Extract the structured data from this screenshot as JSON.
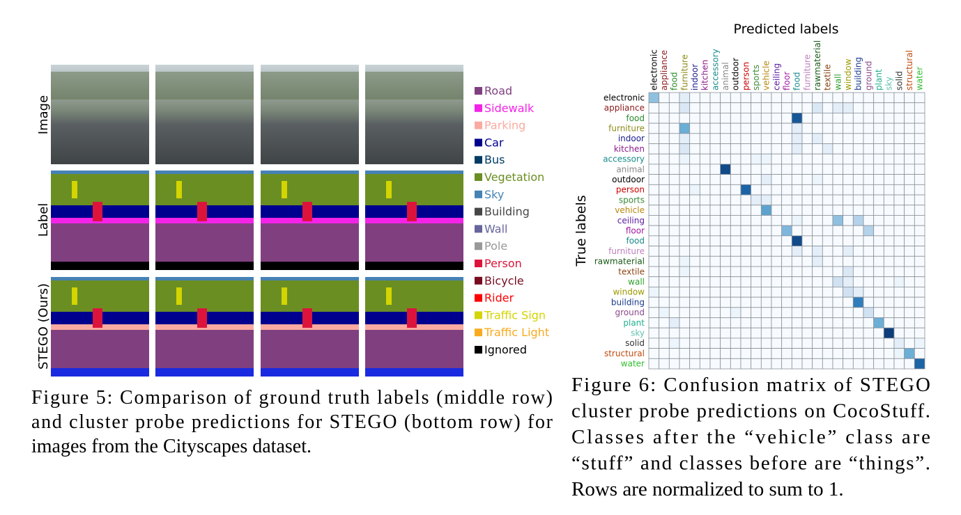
{
  "figure5": {
    "row_labels": [
      "Image",
      "Label",
      "STEGO (Ours)"
    ],
    "legend": [
      {
        "name": "Road",
        "color": "#804080"
      },
      {
        "name": "Sidewalk",
        "color": "#f423e8"
      },
      {
        "name": "Parking",
        "color": "#faaaa0"
      },
      {
        "name": "Car",
        "color": "#00008e"
      },
      {
        "name": "Bus",
        "color": "#003c64"
      },
      {
        "name": "Vegetation",
        "color": "#6b8e23"
      },
      {
        "name": "Sky",
        "color": "#4682b4"
      },
      {
        "name": "Building",
        "color": "#464646"
      },
      {
        "name": "Wall",
        "color": "#66669c"
      },
      {
        "name": "Pole",
        "color": "#999999"
      },
      {
        "name": "Person",
        "color": "#dc143c"
      },
      {
        "name": "Bicycle",
        "color": "#770b20"
      },
      {
        "name": "Rider",
        "color": "#ff0000"
      },
      {
        "name": "Traffic Sign",
        "color": "#d4d400"
      },
      {
        "name": "Traffic Light",
        "color": "#faaa1e"
      },
      {
        "name": "Ignored",
        "color": "#000000"
      }
    ],
    "caption": [
      "Figure 5: Comparison of ground truth labels (middle row)",
      "and cluster probe predictions for STEGO (bottom row) for",
      "images from the Cityscapes dataset."
    ]
  },
  "figure6_caption": [
    "Figure 6: Confusion matrix of STEGO",
    "cluster probe predictions on CocoStuff.",
    "Classes after the “vehicle” class are",
    "“stuff” and classes before are “things”.",
    "Rows are normalized to sum to 1."
  ],
  "chart_data": {
    "type": "heatmap",
    "x_label": "Predicted labels",
    "y_label": "True labels",
    "categories": [
      "electronic",
      "appliance",
      "food",
      "furniture",
      "indoor",
      "kitchen",
      "accessory",
      "animal",
      "outdoor",
      "person",
      "sports",
      "vehicle",
      "ceiling",
      "floor",
      "food",
      "furniture",
      "rawmaterial",
      "textile",
      "wall",
      "window",
      "building",
      "ground",
      "plant",
      "sky",
      "solid",
      "structural",
      "water"
    ],
    "label_colors": [
      "#000000",
      "#8b1a1a",
      "#2a8a2a",
      "#8b8b1a",
      "#1a1a8b",
      "#8b1a8b",
      "#1a8b8b",
      "#888888",
      "#000000",
      "#cc0000",
      "#3a8a3a",
      "#b8860b",
      "#5a1aa0",
      "#a01aa0",
      "#1a8a8a",
      "#c080c0",
      "#1a5a1a",
      "#8b4513",
      "#30a030",
      "#9a9a00",
      "#1a3a8b",
      "#8a4a8a",
      "#20b090",
      "#60c0b0",
      "#333333",
      "#c04a10",
      "#30c030"
    ],
    "values": [
      [
        0.4,
        0,
        0,
        0.1,
        0,
        0,
        0,
        0,
        0,
        0,
        0,
        0,
        0,
        0,
        0,
        0,
        0,
        0,
        0,
        0,
        0,
        0,
        0,
        0,
        0,
        0,
        0
      ],
      [
        0,
        0,
        0,
        0.15,
        0,
        0,
        0,
        0,
        0,
        0,
        0,
        0,
        0,
        0,
        0,
        0,
        0.15,
        0,
        0.1,
        0.1,
        0,
        0,
        0,
        0,
        0,
        0,
        0
      ],
      [
        0,
        0,
        0,
        0,
        0,
        0,
        0,
        0,
        0,
        0,
        0,
        0,
        0,
        0,
        0.85,
        0,
        0,
        0,
        0,
        0,
        0,
        0,
        0,
        0,
        0,
        0,
        0
      ],
      [
        0,
        0,
        0,
        0.5,
        0,
        0,
        0,
        0,
        0,
        0,
        0,
        0,
        0,
        0,
        0.1,
        0,
        0,
        0,
        0,
        0,
        0,
        0,
        0,
        0,
        0,
        0,
        0
      ],
      [
        0,
        0,
        0,
        0.1,
        0,
        0,
        0,
        0,
        0,
        0,
        0,
        0,
        0,
        0,
        0.1,
        0,
        0.1,
        0,
        0,
        0,
        0,
        0,
        0,
        0,
        0,
        0,
        0
      ],
      [
        0,
        0,
        0,
        0.15,
        0,
        0,
        0,
        0,
        0,
        0,
        0,
        0,
        0,
        0,
        0.1,
        0,
        0,
        0.1,
        0,
        0,
        0,
        0,
        0,
        0,
        0,
        0,
        0
      ],
      [
        0,
        0,
        0,
        0.05,
        0,
        0,
        0,
        0,
        0,
        0,
        0.05,
        0.05,
        0,
        0,
        0,
        0,
        0,
        0,
        0,
        0,
        0,
        0,
        0,
        0,
        0,
        0,
        0
      ],
      [
        0,
        0,
        0,
        0,
        0,
        0,
        0,
        0.9,
        0,
        0,
        0,
        0,
        0,
        0,
        0,
        0,
        0,
        0,
        0,
        0,
        0,
        0,
        0,
        0,
        0,
        0,
        0
      ],
      [
        0,
        0,
        0,
        0,
        0,
        0,
        0,
        0,
        0,
        0,
        0,
        0.1,
        0,
        0,
        0,
        0,
        0.05,
        0,
        0,
        0,
        0,
        0,
        0,
        0,
        0,
        0,
        0
      ],
      [
        0,
        0,
        0,
        0,
        0.05,
        0,
        0,
        0,
        0,
        0.8,
        0,
        0,
        0,
        0,
        0,
        0,
        0,
        0,
        0,
        0,
        0,
        0,
        0,
        0,
        0,
        0,
        0
      ],
      [
        0,
        0,
        0,
        0,
        0,
        0,
        0,
        0,
        0,
        0,
        0.1,
        0.1,
        0,
        0,
        0,
        0,
        0,
        0,
        0,
        0,
        0,
        0,
        0,
        0,
        0,
        0,
        0
      ],
      [
        0,
        0,
        0,
        0,
        0,
        0,
        0,
        0,
        0,
        0,
        0,
        0.55,
        0,
        0,
        0,
        0,
        0,
        0,
        0,
        0,
        0,
        0,
        0,
        0,
        0,
        0,
        0
      ],
      [
        0,
        0,
        0,
        0,
        0,
        0,
        0,
        0,
        0,
        0,
        0,
        0,
        0,
        0,
        0.05,
        0,
        0,
        0,
        0.4,
        0,
        0.3,
        0,
        0,
        0,
        0,
        0,
        0
      ],
      [
        0,
        0,
        0,
        0,
        0,
        0,
        0,
        0,
        0,
        0,
        0,
        0,
        0,
        0.45,
        0,
        0,
        0,
        0,
        0,
        0,
        0,
        0.3,
        0,
        0,
        0,
        0,
        0
      ],
      [
        0,
        0,
        0,
        0,
        0,
        0,
        0,
        0,
        0,
        0,
        0,
        0,
        0,
        0,
        0.9,
        0,
        0,
        0,
        0,
        0,
        0,
        0,
        0,
        0,
        0,
        0,
        0
      ],
      [
        0,
        0,
        0,
        0,
        0,
        0,
        0,
        0,
        0,
        0,
        0,
        0,
        0,
        0,
        0.1,
        0,
        0.1,
        0,
        0,
        0.1,
        0,
        0,
        0,
        0,
        0,
        0,
        0
      ],
      [
        0,
        0,
        0,
        0.05,
        0,
        0,
        0,
        0,
        0,
        0,
        0,
        0,
        0,
        0,
        0,
        0,
        0.1,
        0,
        0,
        0,
        0,
        0,
        0,
        0,
        0,
        0,
        0
      ],
      [
        0,
        0,
        0,
        0.05,
        0,
        0,
        0,
        0,
        0,
        0,
        0,
        0,
        0,
        0,
        0,
        0,
        0,
        0,
        0,
        0.15,
        0,
        0,
        0,
        0,
        0,
        0,
        0
      ],
      [
        0,
        0,
        0,
        0,
        0,
        0,
        0,
        0,
        0,
        0,
        0,
        0,
        0,
        0,
        0,
        0,
        0,
        0,
        0.2,
        0.1,
        0,
        0,
        0,
        0,
        0.05,
        0,
        0
      ],
      [
        0.05,
        0,
        0,
        0,
        0,
        0,
        0,
        0,
        0,
        0,
        0,
        0,
        0,
        0,
        0,
        0,
        0,
        0,
        0,
        0.2,
        0.1,
        0,
        0,
        0,
        0,
        0,
        0
      ],
      [
        0,
        0,
        0,
        0,
        0,
        0,
        0,
        0,
        0,
        0,
        0,
        0,
        0,
        0,
        0,
        0,
        0,
        0,
        0,
        0,
        0.7,
        0,
        0,
        0,
        0,
        0,
        0
      ],
      [
        0,
        0.05,
        0,
        0,
        0,
        0,
        0,
        0,
        0.05,
        0,
        0,
        0,
        0,
        0,
        0,
        0,
        0,
        0,
        0,
        0,
        0,
        0.2,
        0,
        0,
        0,
        0,
        0
      ],
      [
        0,
        0,
        0.1,
        0,
        0,
        0,
        0,
        0,
        0,
        0,
        0,
        0,
        0,
        0,
        0,
        0,
        0,
        0,
        0,
        0,
        0,
        0,
        0.5,
        0,
        0,
        0,
        0
      ],
      [
        0,
        0,
        0,
        0,
        0,
        0,
        0,
        0,
        0,
        0,
        0,
        0,
        0,
        0,
        0,
        0,
        0,
        0,
        0,
        0,
        0,
        0,
        0,
        0.95,
        0,
        0,
        0
      ],
      [
        0,
        0,
        0.05,
        0,
        0,
        0,
        0,
        0,
        0,
        0,
        0,
        0,
        0,
        0,
        0,
        0,
        0,
        0,
        0,
        0,
        0,
        0,
        0,
        0,
        0.1,
        0,
        0.05
      ],
      [
        0,
        0,
        0,
        0,
        0,
        0,
        0,
        0,
        0,
        0,
        0,
        0,
        0,
        0,
        0,
        0,
        0,
        0,
        0,
        0,
        0,
        0,
        0,
        0,
        0.05,
        0.5,
        0
      ],
      [
        0,
        0,
        0,
        0,
        0,
        0,
        0,
        0,
        0,
        0,
        0,
        0,
        0,
        0,
        0,
        0,
        0,
        0,
        0,
        0,
        0,
        0,
        0,
        0,
        0,
        0,
        0.8
      ]
    ]
  }
}
